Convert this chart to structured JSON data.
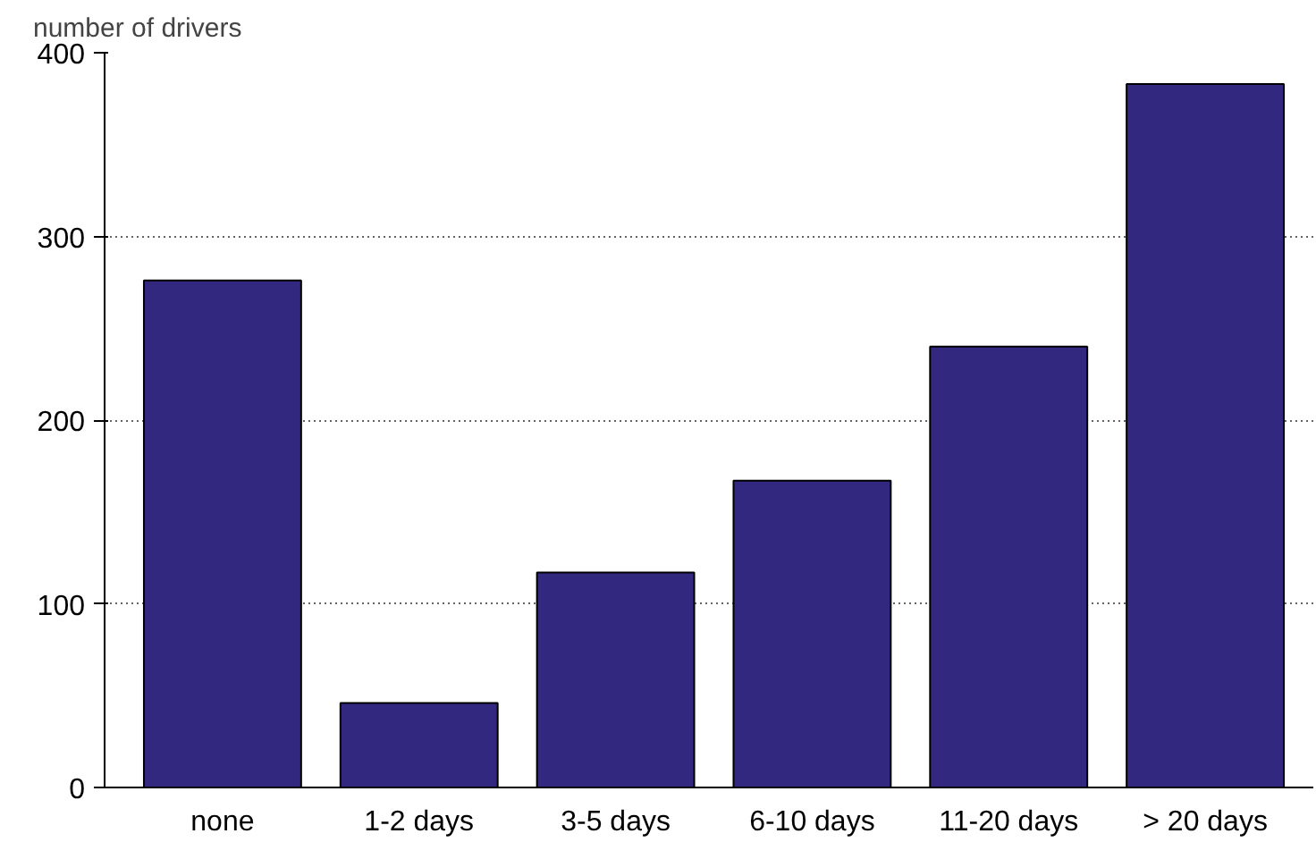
{
  "chart_data": {
    "type": "bar",
    "ylabel": "number of drivers",
    "categories": [
      "none",
      "1-2 days",
      "3-5 days",
      "6-10 days",
      "11-20 days",
      "> 20 days"
    ],
    "values": [
      276,
      46,
      117,
      167,
      240,
      383
    ],
    "color": "#32287f",
    "ylim": [
      0,
      400
    ],
    "yticks": [
      0,
      100,
      200,
      300,
      400
    ],
    "grid": "y"
  }
}
